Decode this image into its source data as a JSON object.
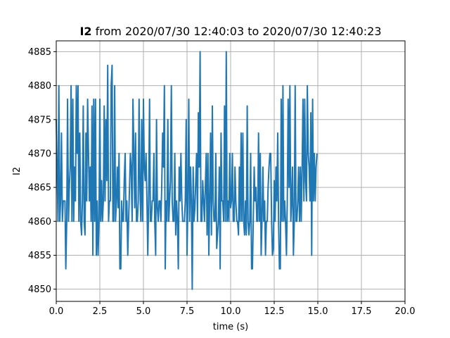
{
  "chart_data": {
    "type": "line",
    "title_bold": "I2",
    "title_rest": " from 2020/07/30 12:40:03 to 2020/07/30 12:40:23",
    "xlabel": "time (s)",
    "ylabel": "I2",
    "xlim": [
      0,
      20
    ],
    "ylim": [
      4848.2,
      4886.6
    ],
    "xticks": [
      "0.0",
      "2.5",
      "5.0",
      "7.5",
      "10.0",
      "12.5",
      "15.0",
      "17.5",
      "20.0"
    ],
    "xtick_values": [
      0,
      2.5,
      5,
      7.5,
      10,
      12.5,
      15,
      17.5,
      20
    ],
    "yticks": [
      "4850",
      "4855",
      "4860",
      "4865",
      "4870",
      "4875",
      "4880",
      "4885"
    ],
    "ytick_values": [
      4850,
      4855,
      4860,
      4865,
      4870,
      4875,
      4880,
      4885
    ],
    "grid": true,
    "line_color": "#1f77b4",
    "series": [
      {
        "x_start": 0,
        "x_step": 0.05,
        "values": [
          4875,
          4868,
          4860,
          4880,
          4860,
          4863,
          4873,
          4860,
          4863,
          4863,
          4863,
          4853,
          4860,
          4878,
          4860,
          4865,
          4868,
          4880,
          4860,
          4878,
          4860,
          4868,
          4863,
          4880,
          4870,
          4880,
          4860,
          4873,
          4860,
          4858,
          4863,
          4877,
          4860,
          4858,
          4873,
          4863,
          4878,
          4870,
          4863,
          4868,
          4860,
          4877,
          4855,
          4878,
          4860,
          4878,
          4855,
          4863,
          4855,
          4860,
          4878,
          4860,
          4866,
          4860,
          4863,
          4877,
          4863,
          4875,
          4866,
          4883,
          4860,
          4863,
          4863,
          4880,
          4883,
          4860,
          4860,
          4880,
          4860,
          4863,
          4868,
          4862,
          4870,
          4853,
          4853,
          4863,
          4860,
          4860,
          4866,
          4870,
          4860,
          4863,
          4855,
          4860,
          4865,
          4870,
          4868,
          4860,
          4878,
          4870,
          4862,
          4873,
          4860,
          4860,
          4863,
          4878,
          4865,
          4860,
          4875,
          4860,
          4878,
          4868,
          4866,
          4870,
          4863,
          4855,
          4863,
          4878,
          4860,
          4860,
          4863,
          4863,
          4870,
          4860,
          4855,
          4875,
          4862,
          4860,
          4863,
          4863,
          4860,
          4865,
          4873,
          4868,
          4880,
          4853,
          4863,
          4860,
          4875,
          4860,
          4863,
          4866,
          4880,
          4863,
          4860,
          4860,
          4870,
          4858,
          4863,
          4860,
          4853,
          4868,
          4863,
          4870,
          4863,
          4860,
          4860,
          4860,
          4863,
          4875,
          4855,
          4863,
          4878,
          4860,
          4868,
          4863,
          4850,
          4868,
          4860,
          4862,
          4866,
          4870,
          4860,
          4876,
          4868,
          4885,
          4860,
          4860,
          4866,
          4863,
          4860,
          4865,
          4870,
          4858,
          4870,
          4855,
          4863,
          4873,
          4858,
          4877,
          4863,
          4860,
          4860,
          4870,
          4856,
          4858,
          4860,
          4868,
          4853,
          4873,
          4863,
          4863,
          4860,
          4877,
          4860,
          4885,
          4860,
          4863,
          4860,
          4870,
          4862,
          4863,
          4870,
          4860,
          4860,
          4868,
          4863,
          4860,
          4860,
          4858,
          4868,
          4860,
          4873,
          4860,
          4873,
          4860,
          4858,
          4863,
          4858,
          4877,
          4860,
          4858,
          4860,
          4870,
          4853,
          4853,
          4860,
          4868,
          4863,
          4865,
          4860,
          4860,
          4873,
          4860,
          4870,
          4855,
          4860,
          4868,
          4860,
          4863,
          4855,
          4860,
          4860,
          4865,
          4868,
          4870,
          4870,
          4860,
          4855,
          4856,
          4866,
          4860,
          4868,
          4863,
          4873,
          4860,
          4853,
          4853,
          4878,
          4860,
          4880,
          4860,
          4863,
          4860,
          4855,
          4863,
          4878,
          4865,
          4880,
          4860,
          4863,
          4868,
          4855,
          4860,
          4880,
          4860,
          4860,
          4863,
          4868,
          4860,
          4868,
          4860,
          4868,
          4878,
          4863,
          4878,
          4866,
          4863,
          4880,
          4870,
          4868,
          4863,
          4876,
          4855,
          4878,
          4863,
          4870,
          4863,
          4868,
          4870
        ]
      }
    ]
  }
}
